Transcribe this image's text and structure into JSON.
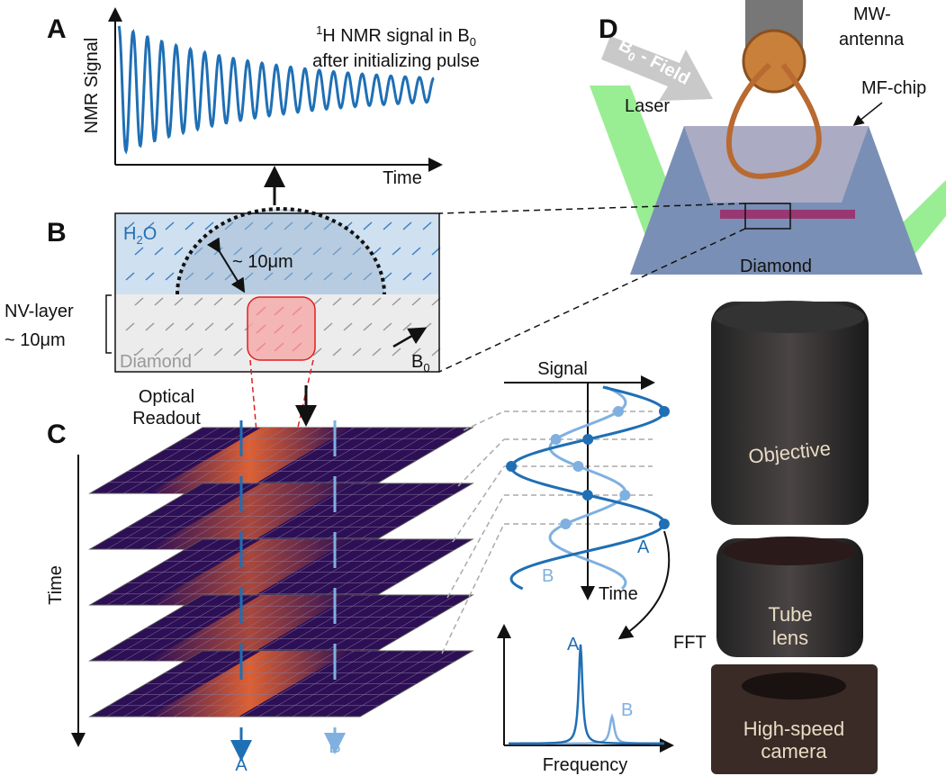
{
  "panels": {
    "a": {
      "label": "A",
      "y_label": "NMR Signal",
      "x_label": "Time",
      "note": {
        "line1": [
          "1",
          "H NMR signal in B",
          "0"
        ],
        "line2": "after initializing pulse"
      }
    },
    "b": {
      "label": "B",
      "water": [
        "H",
        "2",
        "O"
      ],
      "distance": "~ 10μm",
      "layer": [
        "NV-layer",
        "~ 10μm"
      ],
      "diamond": "Diamond",
      "field": [
        "B",
        "0"
      ],
      "readout": [
        "Optical",
        "Readout"
      ]
    },
    "c": {
      "label": "C",
      "time": "Time",
      "pixel_a": "A",
      "pixel_b": "B",
      "signal_title": "Signal",
      "signal_time": "Time",
      "trace_a": "A",
      "trace_b": "B",
      "fft": "FFT",
      "peak_a": "A",
      "peak_b": "B",
      "frequency": "Frequency"
    },
    "d": {
      "label": "D",
      "field": [
        "B",
        "0",
        " - Field"
      ],
      "antenna": [
        "MW-",
        "antenna"
      ],
      "chip": "MF-chip",
      "laser": "Laser",
      "diamond": "Diamond",
      "objective": "Objective",
      "tube": [
        "Tube",
        "lens"
      ],
      "camera": [
        "High-speed",
        "camera"
      ]
    }
  }
}
